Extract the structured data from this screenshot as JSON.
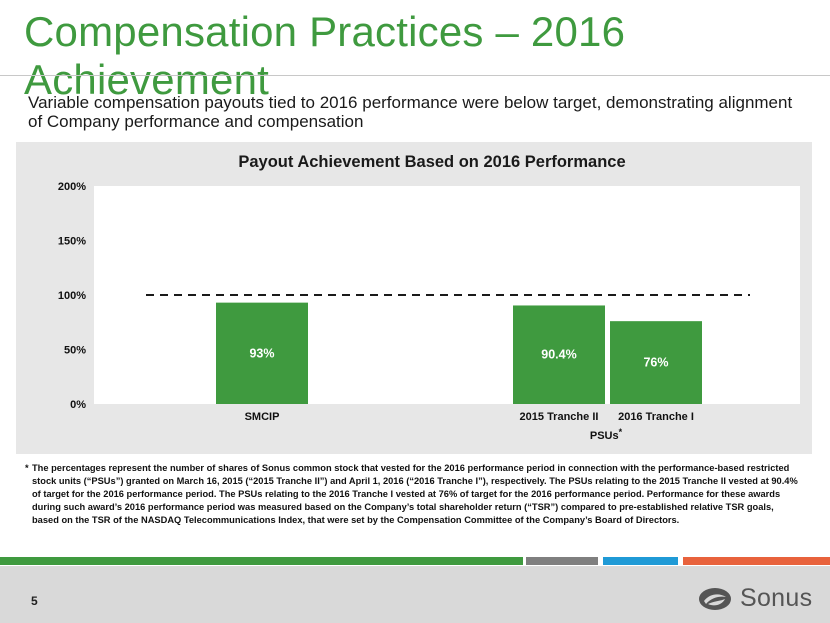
{
  "slide": {
    "title": "Compensation Practices – 2016 Achievement",
    "subtitle": "Variable compensation payouts tied to 2016 performance were below target, demonstrating alignment of Company performance and compensation",
    "footnote_marker": "*",
    "footnote": "The percentages represent the number of shares of Sonus common stock that vested for the 2016 performance period in connection with the performance-based restricted stock units (“PSUs”) granted on March 16, 2015 (“2015 Tranche II”) and April 1, 2016 (“2016 Tranche I”), respectively.  The PSUs relating to the 2015 Tranche II vested at 90.4% of target for the 2016 performance period.  The PSUs relating to the 2016 Tranche I vested at 76% of target for the 2016 performance period.  Performance for these awards during such award’s 2016 performance period was measured based on the Company’s total shareholder return (“TSR”) compared to pre-established relative TSR goals, based on the TSR of the NASDAQ Telecommunications Index, that were set by the Compensation Committee of the Company’s Board of Directors.",
    "page_number": "5",
    "logo_text": "Sonus",
    "logo_icon": "sonus-swirl-icon"
  },
  "colors": {
    "title_green": "#3f9a3f",
    "bar_green": "#3f9a3f",
    "panel_gray": "#e7e7e7",
    "strip": [
      "#3f9a3f",
      "#7f7f7f",
      "#1f9ad6",
      "#e8623c"
    ]
  },
  "chart_data": {
    "type": "bar",
    "title": "Payout Achievement Based on 2016 Performance",
    "categories": [
      "SMCIP",
      "2015 Tranche II",
      "2016 Tranche I"
    ],
    "values": [
      93,
      90.4,
      76
    ],
    "data_labels": [
      "93%",
      "90.4%",
      "76%"
    ],
    "group_label": "PSUs*",
    "group_label_base": "PSUs",
    "group_label_sup": "*",
    "ylim": [
      0,
      200
    ],
    "yticks": [
      0,
      50,
      100,
      150,
      200
    ],
    "ytick_labels": [
      "0%",
      "50%",
      "100%",
      "150%",
      "200%"
    ],
    "target_line": 100,
    "target_line_style": "dashed",
    "grid": false,
    "legend": "none",
    "xlabel": "",
    "ylabel": ""
  }
}
